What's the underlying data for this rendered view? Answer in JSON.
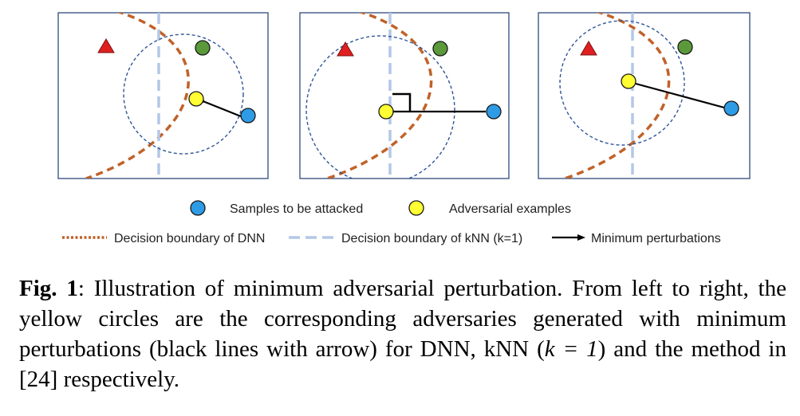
{
  "legend": {
    "samples_label": "Samples to be attacked",
    "adversarial_label": "Adversarial examples",
    "dnn_boundary_label": "Decision boundary of DNN",
    "knn_boundary_label": "Decision boundary of kNN (k=1)",
    "perturbation_label": "Minimum perturbations"
  },
  "colors": {
    "panel_border": "#2f4b7c",
    "dnn_boundary": "#c0622a",
    "knn_boundary": "#b4c7e7",
    "neighborhood_circle": "#2f5597",
    "triangle": "#e02020",
    "green_point": "#5a9a3a",
    "blue_point": "#2e9be6",
    "yellow_point": "#ffff33",
    "arrow": "#000000"
  },
  "caption": {
    "label": "Fig. 1",
    "text_before_math": ": Illustration of minimum adversarial perturbation. From left to right, the yellow circles are the corresponding adversaries generated with minimum perturbations (black lines with arrow) for DNN, kNN (",
    "math": "k = 1",
    "text_after_math": ") and the method in [24] respectively."
  }
}
